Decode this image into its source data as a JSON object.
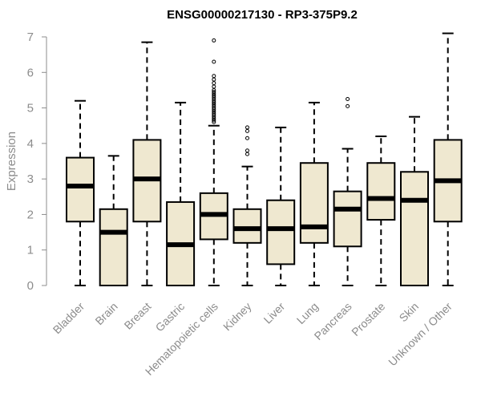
{
  "chart_data": {
    "type": "boxplot",
    "title": "ENSG00000217130 - RP3-375P9.2",
    "xlabel": "",
    "ylabel": "Expression",
    "ylim": [
      0,
      7.2
    ],
    "yticks": [
      0,
      1,
      2,
      3,
      4,
      5,
      6,
      7
    ],
    "grid": false,
    "colors": {
      "box_fill": "#efe8d0",
      "stroke": "#000000",
      "axis_text": "#8c8c8c",
      "outlier": "#000000"
    },
    "categories": [
      "Bladder",
      "Brain",
      "Breast",
      "Gastric",
      "Hematopoietic cells",
      "Kidney",
      "Liver",
      "Lung",
      "Pancreas",
      "Prostate",
      "Skin",
      "Unknown / Other"
    ],
    "boxes": [
      {
        "category": "Bladder",
        "min": 0,
        "q1": 1.8,
        "median": 2.8,
        "q3": 3.6,
        "max": 5.2,
        "outliers": []
      },
      {
        "category": "Brain",
        "min": 0,
        "q1": 0,
        "median": 1.5,
        "q3": 2.15,
        "max": 3.65,
        "outliers": []
      },
      {
        "category": "Breast",
        "min": 0,
        "q1": 1.8,
        "median": 3.0,
        "q3": 4.1,
        "max": 6.85,
        "outliers": []
      },
      {
        "category": "Gastric",
        "min": 0,
        "q1": 0,
        "median": 1.15,
        "q3": 2.35,
        "max": 5.15,
        "outliers": []
      },
      {
        "category": "Hematopoietic cells",
        "min": 0,
        "q1": 1.3,
        "median": 2.0,
        "q3": 2.6,
        "max": 4.5,
        "outliers": [
          4.6,
          4.65,
          4.7,
          4.75,
          4.8,
          4.85,
          4.9,
          4.95,
          5.0,
          5.05,
          5.1,
          5.15,
          5.2,
          5.25,
          5.3,
          5.35,
          5.4,
          5.45,
          5.5,
          5.6,
          5.7,
          5.8,
          5.9,
          6.3,
          6.9
        ]
      },
      {
        "category": "Kidney",
        "min": 0,
        "q1": 1.2,
        "median": 1.6,
        "q3": 2.15,
        "max": 3.35,
        "outliers": [
          3.7,
          3.8,
          4.15,
          4.35,
          4.45
        ]
      },
      {
        "category": "Liver",
        "min": 0,
        "q1": 0.6,
        "median": 1.6,
        "q3": 2.4,
        "max": 4.45,
        "outliers": []
      },
      {
        "category": "Lung",
        "min": 0,
        "q1": 1.2,
        "median": 1.65,
        "q3": 3.45,
        "max": 5.15,
        "outliers": []
      },
      {
        "category": "Pancreas",
        "min": 0,
        "q1": 1.1,
        "median": 2.15,
        "q3": 2.65,
        "max": 3.85,
        "outliers": [
          5.05,
          5.25
        ]
      },
      {
        "category": "Prostate",
        "min": 0,
        "q1": 1.85,
        "median": 2.45,
        "q3": 3.45,
        "max": 4.2,
        "outliers": []
      },
      {
        "category": "Skin",
        "min": 0,
        "q1": 0,
        "median": 2.4,
        "q3": 3.2,
        "max": 4.75,
        "outliers": []
      },
      {
        "category": "Unknown / Other",
        "min": 0,
        "q1": 1.8,
        "median": 2.95,
        "q3": 4.1,
        "max": 7.1,
        "outliers": []
      }
    ]
  }
}
